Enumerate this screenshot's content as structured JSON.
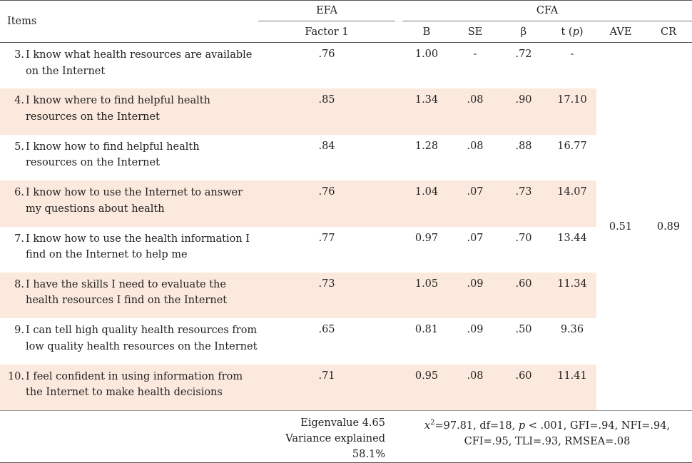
{
  "header": {
    "items": "Items",
    "efa": "EFA",
    "cfa": "CFA",
    "factor": "Factor  1",
    "b": "B",
    "se": "SE",
    "beta": "β",
    "t_pre": "t (",
    "t_p": "p",
    "t_post": ")",
    "ave": "AVE",
    "cr": "CR"
  },
  "rows": [
    {
      "num": "3.",
      "line1": "I know what health resources are available",
      "line2": "on the Internet",
      "factor": ".76",
      "b": "1.00",
      "se": "-",
      "beta": ".72",
      "t": "-"
    },
    {
      "num": "4.",
      "line1": "I know where to find helpful health",
      "line2": "resources on the Internet",
      "factor": ".85",
      "b": "1.34",
      "se": ".08",
      "beta": ".90",
      "t": "17.10"
    },
    {
      "num": "5.",
      "line1": "I know how to find helpful health",
      "line2": "resources on the Internet",
      "factor": ".84",
      "b": "1.28",
      "se": ".08",
      "beta": ".88",
      "t": "16.77"
    },
    {
      "num": "6.",
      "line1": "I know how to use the Internet to answer",
      "line2": "my questions about health",
      "factor": ".76",
      "b": "1.04",
      "se": ".07",
      "beta": ".73",
      "t": "14.07"
    },
    {
      "num": "7.",
      "line1": "I know how to use the health information I",
      "line2": "find on the Internet to help me",
      "factor": ".77",
      "b": "0.97",
      "se": ".07",
      "beta": ".70",
      "t": "13.44"
    },
    {
      "num": "8.",
      "line1": "I have the skills I need to evaluate the",
      "line2": "health resources I find on the Internet",
      "factor": ".73",
      "b": "1.05",
      "se": ".09",
      "beta": ".60",
      "t": "11.34"
    },
    {
      "num": "9.",
      "line1": "I can tell high quality health resources from",
      "line2": "low quality health resources on the Internet",
      "factor": ".65",
      "b": "0.81",
      "se": ".09",
      "beta": ".50",
      "t": "9.36"
    },
    {
      "num": "10.",
      "line1": "I feel confident in using information from",
      "line2": "the Internet to make health decisions",
      "factor": ".71",
      "b": "0.95",
      "se": ".08",
      "beta": ".60",
      "t": "11.41"
    }
  ],
  "summary": {
    "ave": "0.51",
    "cr": "0.89"
  },
  "footer": {
    "eigen": "Eigenvalue 4.65",
    "variance": "Variance explained 58.1%",
    "chi": "x",
    "chi_sup": "2",
    "fit1_a": "=97.81,  df=18,  ",
    "fit1_p": "p",
    "fit1_b": " < .001,  GFI=.94,  NFI=.94,",
    "fit2": "CFI=.95,  TLI=.93,  RMSEA=.08"
  },
  "colors": {
    "shade": "#fce9dd",
    "rule": "#555555"
  }
}
